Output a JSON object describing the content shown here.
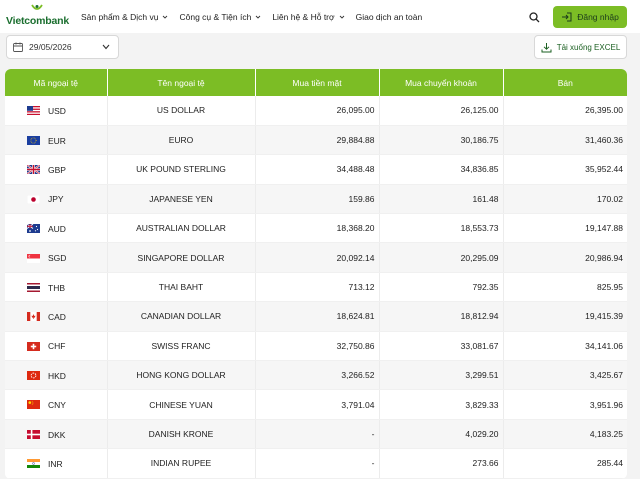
{
  "header": {
    "logo_text": "Vietcombank",
    "nav": [
      {
        "label": "Sản phẩm & Dịch vụ",
        "has_dropdown": true
      },
      {
        "label": "Công cụ & Tiện ích",
        "has_dropdown": true
      },
      {
        "label": "Liên hệ & Hỗ trợ",
        "has_dropdown": true
      },
      {
        "label": "Giao dịch an toàn",
        "has_dropdown": false
      }
    ],
    "login_label": "Đăng nhập"
  },
  "toolbar": {
    "date_value": "29/05/2026",
    "excel_label": "Tải xuống EXCEL"
  },
  "table": {
    "headers": [
      "Mã ngoại tệ",
      "Tên ngoại tệ",
      "Mua tiền mặt",
      "Mua chuyển khoản",
      "Bán"
    ],
    "rows": [
      {
        "code": "USD",
        "name": "US DOLLAR",
        "cash": "26,095.00",
        "transfer": "26,125.00",
        "sell": "26,395.00",
        "flag": "us-flag"
      },
      {
        "code": "EUR",
        "name": "EURO",
        "cash": "29,884.88",
        "transfer": "30,186.75",
        "sell": "31,460.36",
        "flag": "eu-flag"
      },
      {
        "code": "GBP",
        "name": "UK POUND STERLING",
        "cash": "34,488.48",
        "transfer": "34,836.85",
        "sell": "35,952.44",
        "flag": "gb-flag"
      },
      {
        "code": "JPY",
        "name": "JAPANESE YEN",
        "cash": "159.86",
        "transfer": "161.48",
        "sell": "170.02",
        "flag": "jp-flag"
      },
      {
        "code": "AUD",
        "name": "AUSTRALIAN DOLLAR",
        "cash": "18,368.20",
        "transfer": "18,553.73",
        "sell": "19,147.88",
        "flag": "au-flag"
      },
      {
        "code": "SGD",
        "name": "SINGAPORE DOLLAR",
        "cash": "20,092.14",
        "transfer": "20,295.09",
        "sell": "20,986.94",
        "flag": "sg-flag"
      },
      {
        "code": "THB",
        "name": "THAI BAHT",
        "cash": "713.12",
        "transfer": "792.35",
        "sell": "825.95",
        "flag": "th-flag"
      },
      {
        "code": "CAD",
        "name": "CANADIAN DOLLAR",
        "cash": "18,624.81",
        "transfer": "18,812.94",
        "sell": "19,415.39",
        "flag": "ca-flag"
      },
      {
        "code": "CHF",
        "name": "SWISS FRANC",
        "cash": "32,750.86",
        "transfer": "33,081.67",
        "sell": "34,141.06",
        "flag": "ch-flag"
      },
      {
        "code": "HKD",
        "name": "HONG KONG DOLLAR",
        "cash": "3,266.52",
        "transfer": "3,299.51",
        "sell": "3,425.67",
        "flag": "hk-flag"
      },
      {
        "code": "CNY",
        "name": "CHINESE YUAN",
        "cash": "3,791.04",
        "transfer": "3,829.33",
        "sell": "3,951.96",
        "flag": "cn-flag"
      },
      {
        "code": "DKK",
        "name": "DANISH KRONE",
        "cash": "-",
        "transfer": "4,029.20",
        "sell": "4,183.25",
        "flag": "dk-flag"
      },
      {
        "code": "INR",
        "name": "INDIAN RUPEE",
        "cash": "-",
        "transfer": "273.66",
        "sell": "285.44",
        "flag": "in-flag"
      }
    ]
  },
  "colors": {
    "brand_green": "#7cbd25",
    "logo_green": "#1a6e2e"
  }
}
